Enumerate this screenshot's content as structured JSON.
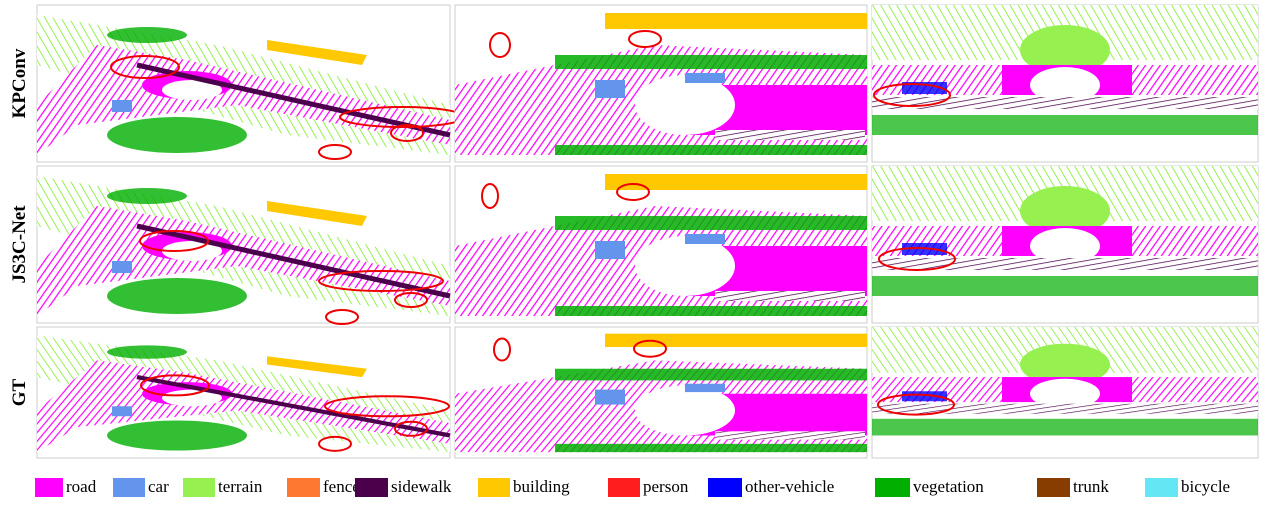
{
  "rows": [
    {
      "label": "KPConv"
    },
    {
      "label": "JS3C-Net"
    },
    {
      "label": "GT"
    }
  ],
  "legend": [
    {
      "label": "road",
      "color": "#ff00ff"
    },
    {
      "label": "car",
      "color": "#6495ed"
    },
    {
      "label": "terrain",
      "color": "#96f050"
    },
    {
      "label": "fence",
      "color": "#ff7832"
    },
    {
      "label": "sidewalk",
      "color": "#4b004b"
    },
    {
      "label": "building",
      "color": "#ffc800"
    },
    {
      "label": "person",
      "color": "#ff1e1e"
    },
    {
      "label": "other-vehicle",
      "color": "#0000ff"
    },
    {
      "label": "vegetation",
      "color": "#00af00"
    },
    {
      "label": "trunk",
      "color": "#873c00"
    },
    {
      "label": "bicycle",
      "color": "#64e6f5"
    }
  ]
}
